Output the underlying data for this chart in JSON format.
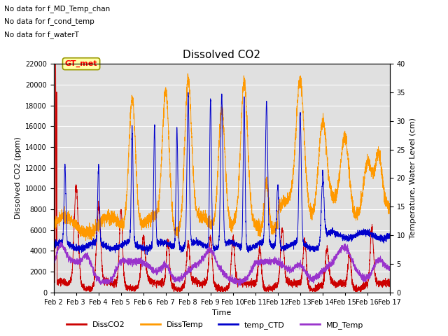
{
  "title": "Dissolved CO2",
  "xlabel": "Time",
  "ylabel_left": "Dissolved CO2 (ppm)",
  "ylabel_right": "Temperature, Water Level (cm)",
  "ylim_left": [
    0,
    22000
  ],
  "ylim_right": [
    0,
    40
  ],
  "yticks_left": [
    0,
    2000,
    4000,
    6000,
    8000,
    10000,
    12000,
    14000,
    16000,
    18000,
    20000,
    22000
  ],
  "yticks_right": [
    0,
    5,
    10,
    15,
    20,
    25,
    30,
    35,
    40
  ],
  "annotations": [
    "No data for f_MD_Temp_chan",
    "No data for f_cond_temp",
    "No data for f_waterT"
  ],
  "gt_met_label": "GT_met",
  "background_color": "#ffffff",
  "plot_bg_color": "#e0e0e0",
  "grid_color": "#ffffff",
  "colors": {
    "DissCO2": "#cc0000",
    "DissTemp": "#ff9900",
    "temp_CTD": "#0000cc",
    "MD_Temp": "#9933cc"
  },
  "legend_labels": [
    "DissCO2",
    "DissTemp",
    "temp_CTD",
    "MD_Temp"
  ],
  "xtick_labels": [
    "Feb 2",
    "Feb 3",
    "Feb 4",
    "Feb 5",
    "Feb 6",
    "Feb 7",
    "Feb 8",
    "Feb 9",
    "Feb 10",
    "Feb 11",
    "Feb 12",
    "Feb 13",
    "Feb 14",
    "Feb 15",
    "Feb 16",
    "Feb 17"
  ],
  "figsize": [
    6.4,
    4.8
  ],
  "dpi": 100
}
